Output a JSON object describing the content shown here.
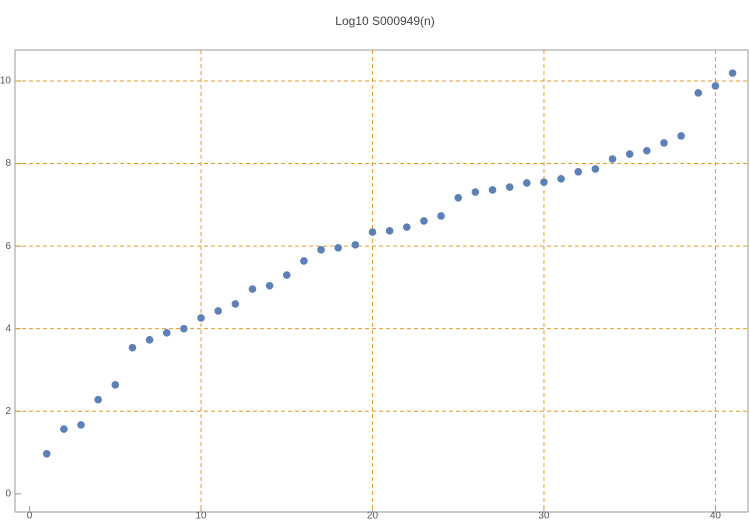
{
  "chart_data": {
    "type": "scatter",
    "title": "Log10 S000949(n)",
    "x": [
      1,
      2,
      3,
      4,
      5,
      6,
      7,
      8,
      9,
      10,
      11,
      12,
      13,
      14,
      15,
      16,
      17,
      18,
      19,
      20,
      21,
      22,
      23,
      24,
      25,
      26,
      27,
      28,
      29,
      30,
      31,
      32,
      33,
      34,
      35,
      36,
      37,
      38,
      39,
      40,
      41
    ],
    "values": [
      0.97,
      1.57,
      1.67,
      2.28,
      2.64,
      3.54,
      3.73,
      3.9,
      4.0,
      4.26,
      4.43,
      4.6,
      4.96,
      5.04,
      5.3,
      5.64,
      5.91,
      5.96,
      6.03,
      6.34,
      6.37,
      6.46,
      6.61,
      6.73,
      7.17,
      7.31,
      7.36,
      7.43,
      7.53,
      7.55,
      7.63,
      7.8,
      7.87,
      8.11,
      8.23,
      8.31,
      8.5,
      8.67,
      9.71,
      9.88,
      10.19
    ],
    "color": "#5e81b5",
    "xlim": [
      -0.85,
      41.9
    ],
    "ylim": [
      -0.44,
      10.75
    ],
    "xticks": [
      0,
      10,
      20,
      30,
      40
    ],
    "yticks": [
      0,
      2,
      4,
      6,
      8,
      10
    ],
    "grid": true,
    "grid_color": "#e69a2a"
  }
}
